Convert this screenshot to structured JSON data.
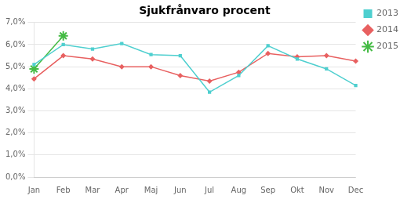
{
  "chart_data": {
    "type": "line",
    "title": "Sjukfrånvaro procent",
    "categories": [
      "Jan",
      "Feb",
      "Mar",
      "Apr",
      "Maj",
      "Jun",
      "Jul",
      "Aug",
      "Sep",
      "Okt",
      "Nov",
      "Dec"
    ],
    "series": [
      {
        "name": "2013",
        "color": "#4ECFCF",
        "marker": "square",
        "values": [
          5.1,
          6.0,
          5.8,
          6.05,
          5.55,
          5.5,
          3.85,
          4.6,
          5.95,
          5.35,
          4.9,
          4.15
        ]
      },
      {
        "name": "2014",
        "color": "#E86060",
        "marker": "diamond",
        "values": [
          4.45,
          5.5,
          5.35,
          5.0,
          5.0,
          4.6,
          4.35,
          4.75,
          5.6,
          5.45,
          5.5,
          5.25
        ]
      },
      {
        "name": "2015",
        "color": "#44BB44",
        "marker": "star",
        "values": [
          4.9,
          6.4,
          null,
          null,
          null,
          null,
          null,
          null,
          null,
          null,
          null,
          null
        ]
      }
    ],
    "ylim": [
      0.0,
      7.0
    ],
    "yticks": [
      {
        "value": 0.0,
        "label": "0,0%"
      },
      {
        "value": 1.0,
        "label": "1,0%"
      },
      {
        "value": 2.0,
        "label": "2,0%"
      },
      {
        "value": 3.0,
        "label": "3,0%"
      },
      {
        "value": 4.0,
        "label": "4,0%"
      },
      {
        "value": 5.0,
        "label": "5,0%"
      },
      {
        "value": 6.0,
        "label": "6,0%"
      },
      {
        "value": 7.0,
        "label": "7,0%"
      }
    ],
    "grid": true,
    "legend": "right"
  }
}
